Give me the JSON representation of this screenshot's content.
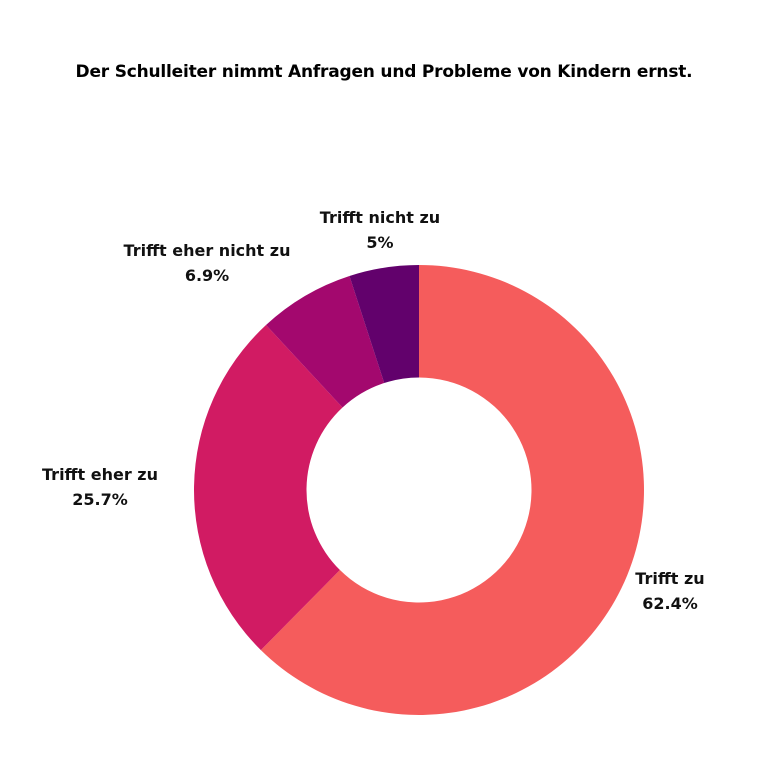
{
  "chart_data": {
    "type": "pie",
    "title": "Der Schulleiter nimmt Anfragen und Probleme von Kindern ernst.",
    "slices": [
      {
        "label": "Trifft zu",
        "value": 62.4,
        "value_label": "62.4%",
        "color": "#f55c5c"
      },
      {
        "label": "Trifft eher zu",
        "value": 25.7,
        "value_label": "25.7%",
        "color": "#d11b63"
      },
      {
        "label": "Trifft eher nicht zu",
        "value": 6.9,
        "value_label": "6.9%",
        "color": "#a3086e"
      },
      {
        "label": "Trifft nicht zu",
        "value": 5,
        "value_label": "5%",
        "color": "#62016c"
      }
    ],
    "legend": "none",
    "hole_ratio": 0.5
  }
}
